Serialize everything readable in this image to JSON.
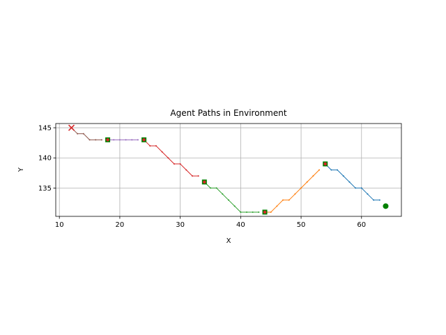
{
  "chart_data": {
    "type": "line",
    "title": "Agent Paths in Environment",
    "xlabel": "X",
    "ylabel": "Y",
    "xlim": [
      9.4,
      66.6
    ],
    "ylim": [
      130.3,
      145.7
    ],
    "xticks": [
      10,
      20,
      30,
      40,
      50,
      60
    ],
    "yticks": [
      135,
      140,
      145
    ],
    "grid": true,
    "series": [
      {
        "color": "#1f77b4",
        "points": [
          [
            63,
            133
          ],
          [
            62,
            133
          ],
          [
            61,
            134
          ],
          [
            60,
            135
          ],
          [
            59,
            135
          ],
          [
            58,
            136
          ],
          [
            57,
            137
          ],
          [
            56,
            138
          ],
          [
            55,
            138
          ],
          [
            54,
            139
          ]
        ]
      },
      {
        "color": "#ff7f0e",
        "points": [
          [
            53,
            138
          ],
          [
            52,
            137
          ],
          [
            51,
            136
          ],
          [
            50,
            135
          ],
          [
            49,
            134
          ],
          [
            48,
            133
          ],
          [
            47,
            133
          ],
          [
            46,
            132
          ],
          [
            45,
            131
          ],
          [
            44,
            131
          ]
        ]
      },
      {
        "color": "#2ca02c",
        "points": [
          [
            43,
            131
          ],
          [
            42,
            131
          ],
          [
            41,
            131
          ],
          [
            40,
            131
          ],
          [
            39,
            132
          ],
          [
            38,
            133
          ],
          [
            37,
            134
          ],
          [
            36,
            135
          ],
          [
            35,
            135
          ],
          [
            34,
            136
          ]
        ]
      },
      {
        "color": "#d62728",
        "points": [
          [
            33,
            137
          ],
          [
            32,
            137
          ],
          [
            31,
            138
          ],
          [
            30,
            139
          ],
          [
            29,
            139
          ],
          [
            28,
            140
          ],
          [
            27,
            141
          ],
          [
            26,
            142
          ],
          [
            25,
            142
          ],
          [
            24,
            143
          ]
        ]
      },
      {
        "color": "#9467bd",
        "points": [
          [
            23,
            143
          ],
          [
            22,
            143
          ],
          [
            21,
            143
          ],
          [
            20,
            143
          ],
          [
            19,
            143
          ],
          [
            18,
            143
          ]
        ]
      },
      {
        "color": "#8c564b",
        "points": [
          [
            17,
            143
          ],
          [
            16,
            143
          ],
          [
            15,
            143
          ],
          [
            14,
            144
          ],
          [
            13,
            144
          ],
          [
            12,
            145
          ]
        ]
      }
    ],
    "waypoints": [
      [
        54,
        139
      ],
      [
        44,
        131
      ],
      [
        34,
        136
      ],
      [
        24,
        143
      ],
      [
        18,
        143
      ]
    ],
    "start": [
      64,
      132
    ],
    "goal": [
      12,
      145
    ],
    "colors": {
      "waypoint_square": "#008000",
      "waypoint_dot": "#d62728",
      "start_marker": "#008000",
      "goal_marker": "#d62728",
      "grid": "#b0b0b0",
      "axis": "#000000"
    }
  }
}
